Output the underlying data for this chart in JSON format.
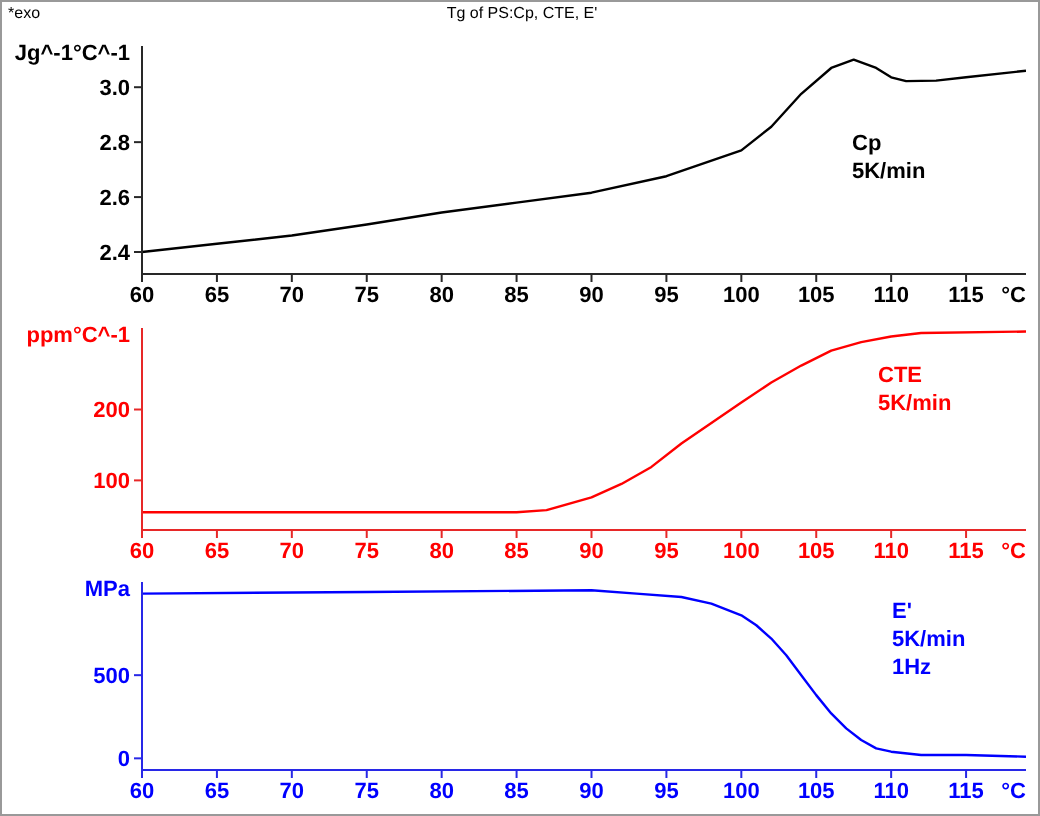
{
  "chart_data": [
    {
      "type": "line",
      "title": "Tg of PS:Cp, CTE, E'",
      "subtitle": "*exo",
      "xlabel": "°C",
      "ylabel": "Jg^-1°C^-1",
      "annotations": [
        "5K/min"
      ],
      "marker": "none",
      "line_style": "solid",
      "x": [
        60,
        65,
        70,
        75,
        80,
        85,
        90,
        95,
        100,
        102,
        104,
        106,
        107.5,
        109,
        110,
        111,
        113,
        115,
        119
      ],
      "series": [
        {
          "name": "Cp",
          "color": "#000000",
          "values": [
            2.4,
            2.43,
            2.46,
            2.5,
            2.544,
            2.58,
            2.616,
            2.676,
            2.77,
            2.856,
            2.976,
            3.07,
            3.1,
            3.07,
            3.036,
            3.022,
            3.024,
            3.036,
            3.06
          ]
        }
      ],
      "xlim": [
        60,
        119
      ],
      "xticks": [
        60,
        65,
        70,
        75,
        80,
        85,
        90,
        95,
        100,
        105,
        110,
        115
      ],
      "ylim": [
        2.32,
        3.15
      ],
      "yticks": [
        2.4,
        2.6,
        2.8,
        {
          "value": 3,
          "label": "3.0"
        }
      ]
    },
    {
      "type": "line",
      "xlabel": "°C",
      "ylabel": "ppm°C^-1",
      "annotations": [
        "5K/min"
      ],
      "marker": "none",
      "line_style": "solid",
      "x": [
        60,
        70,
        80,
        85,
        87,
        90,
        92,
        94,
        96,
        98,
        100,
        102,
        104,
        106,
        108,
        110,
        112,
        119
      ],
      "series": [
        {
          "name": "CTE",
          "color": "#ff0000",
          "values": [
            55,
            55,
            55,
            55,
            58,
            76,
            95,
            119,
            152,
            181,
            210,
            238,
            262,
            283,
            295,
            303,
            308,
            310
          ]
        }
      ],
      "xlim": [
        60,
        119
      ],
      "xticks": [
        60,
        65,
        70,
        75,
        80,
        85,
        90,
        95,
        100,
        105,
        110,
        115
      ],
      "ylim": [
        30,
        315
      ],
      "yticks": [
        100,
        200
      ]
    },
    {
      "type": "line",
      "xlabel": "°C",
      "ylabel": "MPa",
      "annotations": [
        "5K/min",
        "1Hz"
      ],
      "marker": "none",
      "line_style": "solid",
      "x": [
        60,
        75,
        90,
        93,
        96,
        98,
        100,
        101,
        102,
        103,
        104,
        105,
        106,
        107,
        108,
        109,
        110,
        112,
        115,
        119
      ],
      "series": [
        {
          "name": "E'",
          "color": "#0000ff",
          "values": [
            990,
            1000,
            1010,
            990,
            970,
            930,
            860,
            800,
            720,
            620,
            500,
            380,
            270,
            180,
            110,
            60,
            40,
            20,
            20,
            10
          ]
        }
      ],
      "xlim": [
        60,
        119
      ],
      "xticks": [
        60,
        65,
        70,
        75,
        80,
        85,
        90,
        95,
        100,
        105,
        110,
        115
      ],
      "ylim": [
        -70,
        1060
      ],
      "yticks": [
        0,
        500
      ]
    }
  ]
}
